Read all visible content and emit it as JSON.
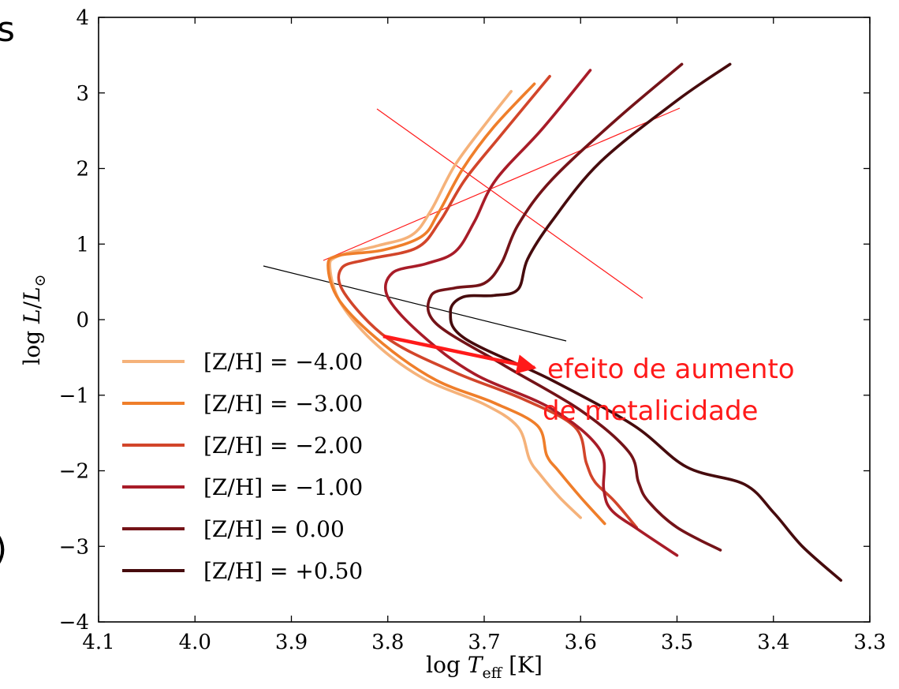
{
  "chart_data": {
    "type": "line",
    "xlabel": "log T_eff [K]",
    "ylabel": "log L/L⊙",
    "xlim": [
      4.1,
      3.3
    ],
    "ylim": [
      -4,
      4
    ],
    "x_reversed": true,
    "x_ticks": [
      "4.1",
      "4.0",
      "3.9",
      "3.8",
      "3.7",
      "3.6",
      "3.5",
      "3.4",
      "3.3"
    ],
    "y_ticks": [
      "4",
      "3",
      "2",
      "1",
      "0",
      "−1",
      "−2",
      "−3",
      "−4"
    ],
    "legend_position": "lower-left",
    "series": [
      {
        "name": "[Z/H] = −4.00",
        "color": "#f5b27a",
        "points": [
          [
            3.6,
            -2.62
          ],
          [
            3.622,
            -2.35
          ],
          [
            3.642,
            -2.05
          ],
          [
            3.653,
            -1.85
          ],
          [
            3.665,
            -1.42
          ],
          [
            3.7,
            -1.12
          ],
          [
            3.76,
            -0.8
          ],
          [
            3.81,
            -0.35
          ],
          [
            3.848,
            0.2
          ],
          [
            3.86,
            0.68
          ],
          [
            3.852,
            0.84
          ],
          [
            3.81,
            0.98
          ],
          [
            3.775,
            1.12
          ],
          [
            3.755,
            1.45
          ],
          [
            3.73,
            2.05
          ],
          [
            3.695,
            2.65
          ],
          [
            3.672,
            3.02
          ]
        ]
      },
      {
        "name": "[Z/H] = −3.00",
        "color": "#ef7e2a",
        "points": [
          [
            3.575,
            -2.7
          ],
          [
            3.6,
            -2.35
          ],
          [
            3.623,
            -2.0
          ],
          [
            3.635,
            -1.8
          ],
          [
            3.645,
            -1.4
          ],
          [
            3.69,
            -1.1
          ],
          [
            3.75,
            -0.8
          ],
          [
            3.805,
            -0.32
          ],
          [
            3.85,
            0.25
          ],
          [
            3.862,
            0.72
          ],
          [
            3.85,
            0.85
          ],
          [
            3.805,
            0.92
          ],
          [
            3.765,
            1.1
          ],
          [
            3.748,
            1.4
          ],
          [
            3.722,
            2.0
          ],
          [
            3.69,
            2.55
          ],
          [
            3.648,
            3.12
          ]
        ]
      },
      {
        "name": "[Z/H] = −2.00",
        "color": "#d2452a",
        "points": [
          [
            3.542,
            -2.75
          ],
          [
            3.565,
            -2.4
          ],
          [
            3.585,
            -2.15
          ],
          [
            3.594,
            -1.9
          ],
          [
            3.606,
            -1.42
          ],
          [
            3.66,
            -1.05
          ],
          [
            3.73,
            -0.7
          ],
          [
            3.8,
            -0.25
          ],
          [
            3.845,
            0.35
          ],
          [
            3.848,
            0.68
          ],
          [
            3.82,
            0.8
          ],
          [
            3.77,
            0.95
          ],
          [
            3.746,
            1.3
          ],
          [
            3.72,
            1.85
          ],
          [
            3.682,
            2.45
          ],
          [
            3.632,
            3.22
          ]
        ]
      },
      {
        "name": "[Z/H] = −1.00",
        "color": "#a81c28",
        "points": [
          [
            3.5,
            -3.12
          ],
          [
            3.54,
            -2.78
          ],
          [
            3.568,
            -2.52
          ],
          [
            3.576,
            -2.25
          ],
          [
            3.58,
            -1.72
          ],
          [
            3.63,
            -1.18
          ],
          [
            3.71,
            -0.72
          ],
          [
            3.765,
            -0.2
          ],
          [
            3.8,
            0.3
          ],
          [
            3.795,
            0.62
          ],
          [
            3.76,
            0.74
          ],
          [
            3.73,
            0.9
          ],
          [
            3.71,
            1.3
          ],
          [
            3.688,
            1.85
          ],
          [
            3.64,
            2.52
          ],
          [
            3.59,
            3.3
          ]
        ]
      },
      {
        "name": "[Z/H] = 0.00",
        "color": "#741318",
        "points": [
          [
            3.455,
            -3.05
          ],
          [
            3.5,
            -2.75
          ],
          [
            3.53,
            -2.4
          ],
          [
            3.54,
            -2.15
          ],
          [
            3.55,
            -1.75
          ],
          [
            3.6,
            -1.2
          ],
          [
            3.68,
            -0.6
          ],
          [
            3.75,
            -0.05
          ],
          [
            3.755,
            0.32
          ],
          [
            3.73,
            0.42
          ],
          [
            3.7,
            0.48
          ],
          [
            3.682,
            0.75
          ],
          [
            3.665,
            1.25
          ],
          [
            3.63,
            1.85
          ],
          [
            3.56,
            2.68
          ],
          [
            3.495,
            3.38
          ]
        ]
      },
      {
        "name": "[Z/H] = +0.50",
        "color": "#460b0d",
        "points": [
          [
            3.33,
            -3.45
          ],
          [
            3.37,
            -3.0
          ],
          [
            3.4,
            -2.55
          ],
          [
            3.43,
            -2.18
          ],
          [
            3.49,
            -1.95
          ],
          [
            3.545,
            -1.4
          ],
          [
            3.63,
            -0.8
          ],
          [
            3.72,
            -0.25
          ],
          [
            3.735,
            0.1
          ],
          [
            3.722,
            0.3
          ],
          [
            3.69,
            0.32
          ],
          [
            3.665,
            0.4
          ],
          [
            3.655,
            0.8
          ],
          [
            3.63,
            1.3
          ],
          [
            3.58,
            2.08
          ],
          [
            3.5,
            2.9
          ],
          [
            3.445,
            3.38
          ]
        ]
      }
    ],
    "annotation": {
      "line1": "efeito de aumento",
      "line2": "de metalicidade",
      "color": "#ff1a1a"
    }
  },
  "edge_fragments": {
    "top_left": "s",
    "bottom_left": ")"
  }
}
